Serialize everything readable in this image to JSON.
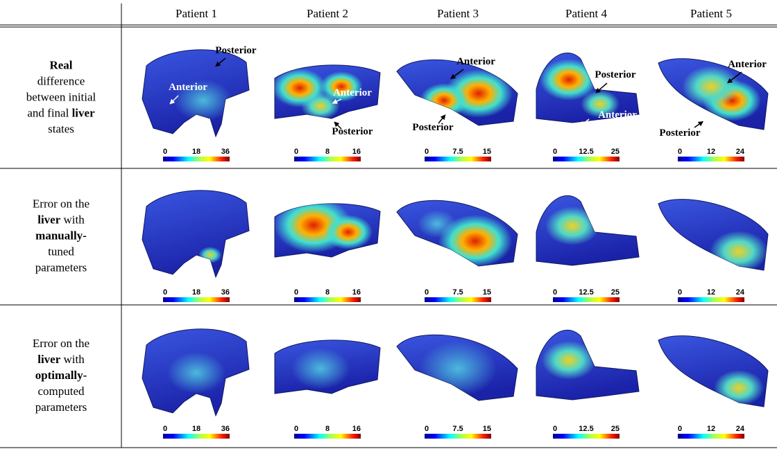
{
  "header": {
    "columns": [
      "Patient 1",
      "Patient 2",
      "Patient 3",
      "Patient 4",
      "Patient 5"
    ]
  },
  "rows": [
    {
      "label": [
        [
          {
            "text": "Real",
            "bold": true
          }
        ],
        [
          {
            "text": "difference"
          }
        ],
        [
          {
            "text": "between initial"
          }
        ],
        [
          {
            "text": "and final "
          },
          {
            "text": "liver",
            "bold": true
          }
        ],
        [
          {
            "text": "states"
          }
        ]
      ],
      "cells": [
        {
          "colorbar": [
            0,
            18,
            36
          ],
          "annotations": [
            "Posterior",
            "Anterior"
          ]
        },
        {
          "colorbar": [
            0,
            8,
            16
          ],
          "annotations": [
            "Anterior",
            "Posterior"
          ]
        },
        {
          "colorbar": [
            0,
            7.5,
            15
          ],
          "annotations": [
            "Anterior",
            "Posterior"
          ]
        },
        {
          "colorbar": [
            0,
            12.5,
            25
          ],
          "annotations": [
            "Posterior",
            "Anterior"
          ]
        },
        {
          "colorbar": [
            0,
            12,
            24
          ],
          "annotations": [
            "Anterior",
            "Posterior"
          ]
        }
      ]
    },
    {
      "label": [
        [
          {
            "text": "Error on the"
          }
        ],
        [
          {
            "text": "liver",
            "bold": true
          },
          {
            "text": " with"
          }
        ],
        [
          {
            "text": "manually-",
            "bold": true
          }
        ],
        [
          {
            "text": "tuned"
          }
        ],
        [
          {
            "text": "parameters"
          }
        ]
      ],
      "cells": [
        {
          "colorbar": [
            0,
            18,
            36
          ]
        },
        {
          "colorbar": [
            0,
            8,
            16
          ]
        },
        {
          "colorbar": [
            0,
            7.5,
            15
          ]
        },
        {
          "colorbar": [
            0,
            12.5,
            25
          ]
        },
        {
          "colorbar": [
            0,
            12,
            24
          ]
        }
      ]
    },
    {
      "label": [
        [
          {
            "text": "Error on the"
          }
        ],
        [
          {
            "text": "liver",
            "bold": true
          },
          {
            "text": " with"
          }
        ],
        [
          {
            "text": "optimally-",
            "bold": true
          }
        ],
        [
          {
            "text": "computed"
          }
        ],
        [
          {
            "text": "parameters"
          }
        ]
      ],
      "cells": [
        {
          "colorbar": [
            0,
            18,
            36
          ]
        },
        {
          "colorbar": [
            0,
            8,
            16
          ]
        },
        {
          "colorbar": [
            0,
            7.5,
            15
          ]
        },
        {
          "colorbar": [
            0,
            12.5,
            25
          ]
        },
        {
          "colorbar": [
            0,
            12,
            24
          ]
        }
      ]
    }
  ]
}
